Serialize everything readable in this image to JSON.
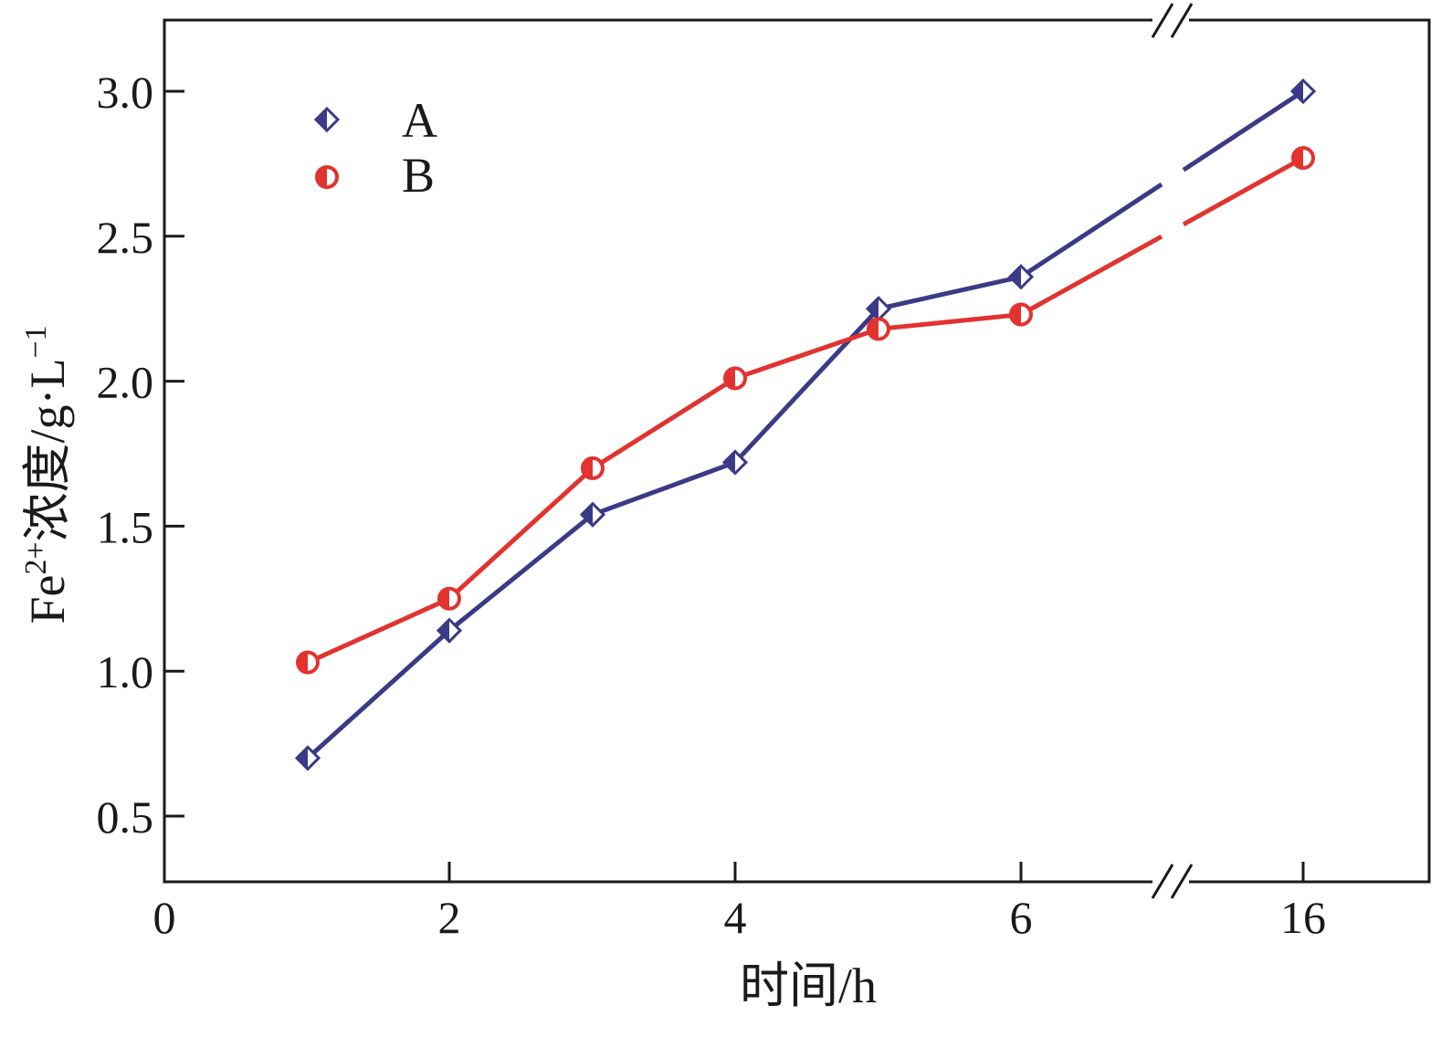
{
  "chart_data": {
    "type": "line",
    "xlabel": "时间/h",
    "ylabel": "Fe2+浓度/g·L−1",
    "ylabel_parts": {
      "base": "Fe",
      "sup1": "2+",
      "mid": "浓度/g·L",
      "sup2": "−1"
    },
    "x_ticks": [
      {
        "value": 0,
        "label": "0"
      },
      {
        "value": 2,
        "label": "2"
      },
      {
        "value": 4,
        "label": "4"
      },
      {
        "value": 6,
        "label": "6"
      },
      {
        "value": 16,
        "label": "16"
      }
    ],
    "y_ticks": [
      {
        "value": 0.5,
        "label": "0.5"
      },
      {
        "value": 1.0,
        "label": "1.0"
      },
      {
        "value": 1.5,
        "label": "1.5"
      },
      {
        "value": 2.0,
        "label": "2.0"
      },
      {
        "value": 2.5,
        "label": "2.5"
      },
      {
        "value": 3.0,
        "label": "3.0"
      }
    ],
    "ylim": [
      0.28,
      3.25
    ],
    "x_axis_break": {
      "between": [
        6,
        16
      ]
    },
    "legend_position": "top-left",
    "grid": false,
    "series": [
      {
        "name": "A",
        "marker": "diamond",
        "color": "#3b3a86",
        "x": [
          1,
          2,
          3,
          4,
          5,
          6,
          16
        ],
        "y": [
          0.7,
          1.14,
          1.54,
          1.72,
          2.25,
          2.36,
          3.0
        ]
      },
      {
        "name": "B",
        "marker": "half-circle",
        "color": "#e2332f",
        "x": [
          1,
          2,
          3,
          4,
          5,
          6,
          16
        ],
        "y": [
          1.03,
          1.25,
          1.7,
          2.01,
          2.18,
          2.23,
          2.77
        ]
      }
    ]
  }
}
